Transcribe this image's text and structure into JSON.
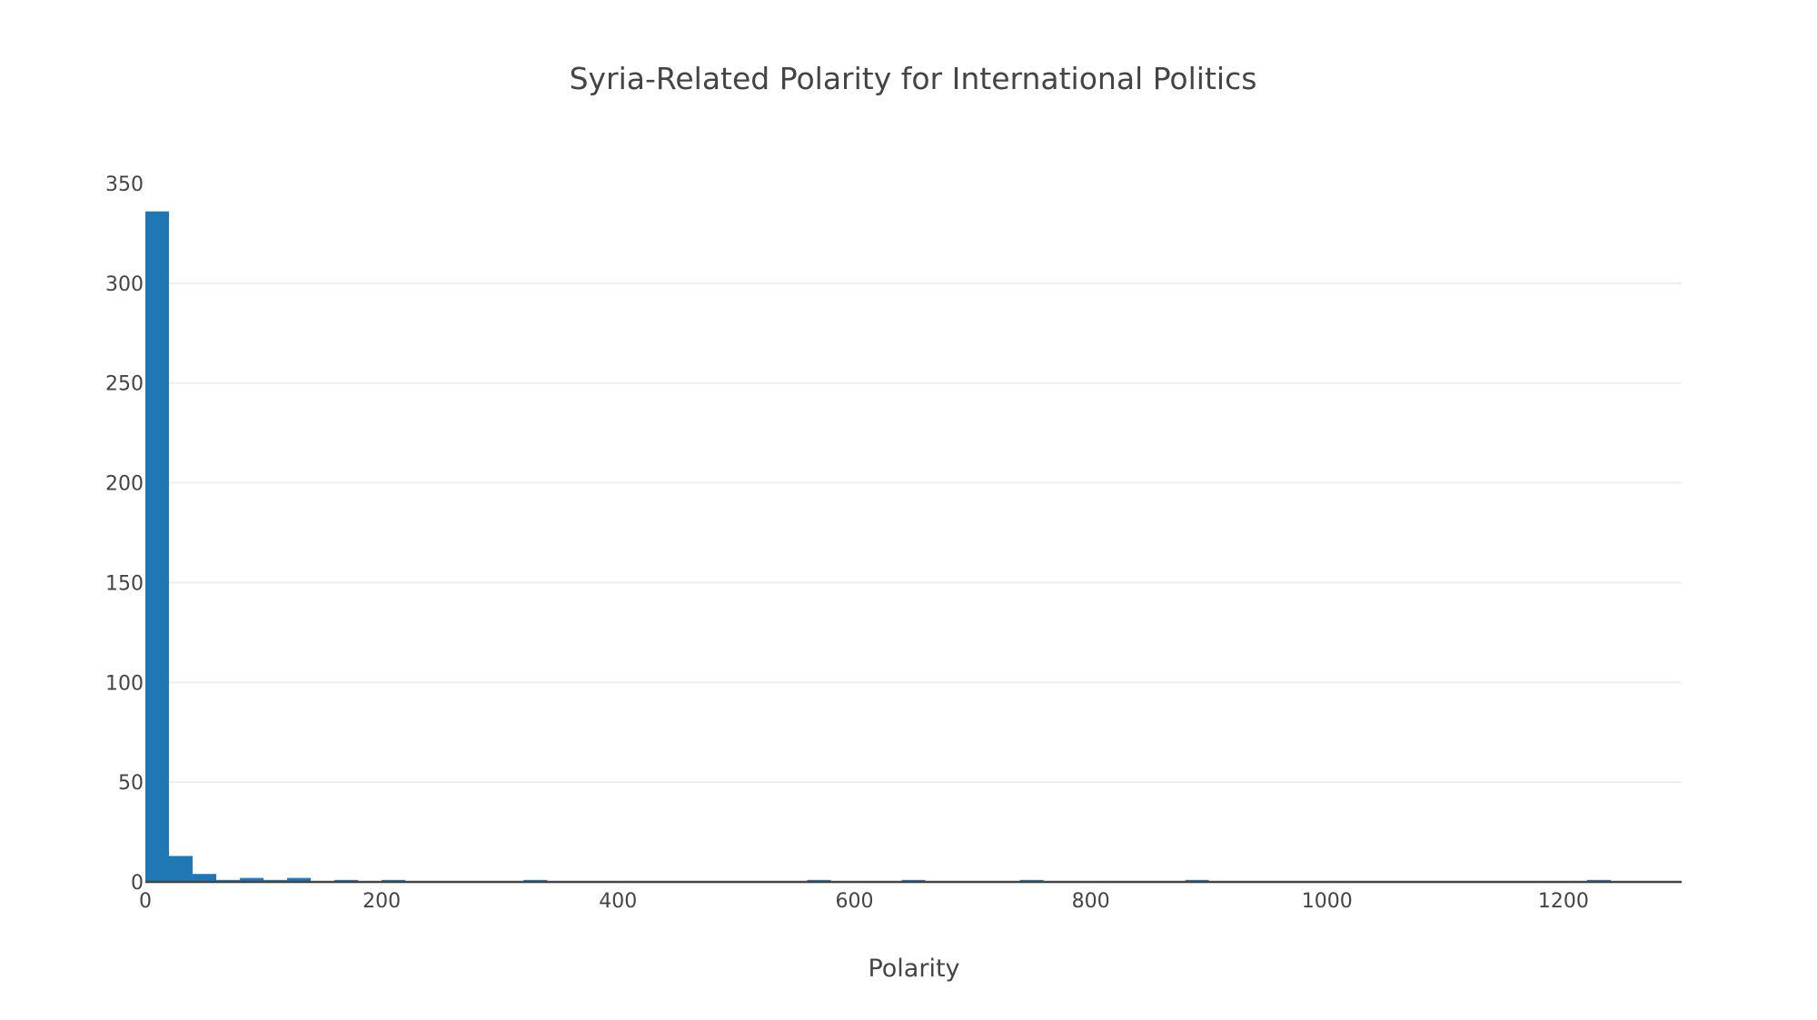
{
  "chart_data": {
    "type": "bar",
    "title": "Syria-Related Polarity for International Politics",
    "xlabel": "Polarity",
    "ylabel": "",
    "xlim": [
      0,
      1300
    ],
    "ylim": [
      0,
      350
    ],
    "x_ticks": [
      "0",
      "200",
      "400",
      "600",
      "800",
      "1000",
      "1200"
    ],
    "y_ticks": [
      "0",
      "50",
      "100",
      "150",
      "200",
      "250",
      "300",
      "350"
    ],
    "bin_width": 20,
    "grid": true,
    "bar_color": "#1f77b4",
    "bins": [
      {
        "x0": 0,
        "x1": 20,
        "count": 336
      },
      {
        "x0": 20,
        "x1": 40,
        "count": 13
      },
      {
        "x0": 40,
        "x1": 60,
        "count": 4
      },
      {
        "x0": 60,
        "x1": 80,
        "count": 1
      },
      {
        "x0": 80,
        "x1": 100,
        "count": 2
      },
      {
        "x0": 100,
        "x1": 120,
        "count": 1
      },
      {
        "x0": 120,
        "x1": 140,
        "count": 2
      },
      {
        "x0": 160,
        "x1": 180,
        "count": 1
      },
      {
        "x0": 200,
        "x1": 220,
        "count": 1
      },
      {
        "x0": 320,
        "x1": 340,
        "count": 1
      },
      {
        "x0": 560,
        "x1": 580,
        "count": 1
      },
      {
        "x0": 640,
        "x1": 660,
        "count": 1
      },
      {
        "x0": 740,
        "x1": 760,
        "count": 1
      },
      {
        "x0": 880,
        "x1": 900,
        "count": 1
      },
      {
        "x0": 1220,
        "x1": 1240,
        "count": 1
      }
    ]
  }
}
